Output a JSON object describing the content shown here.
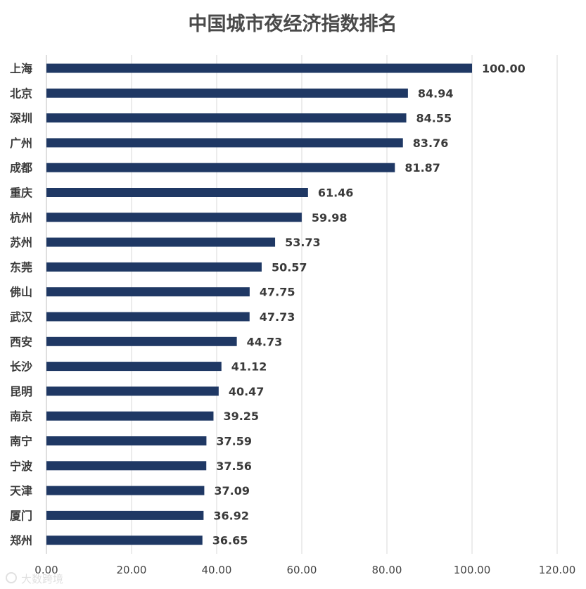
{
  "chart_data": {
    "type": "bar",
    "orientation": "horizontal",
    "title": "中国城市夜经济指数排名",
    "categories": [
      "上海",
      "北京",
      "深圳",
      "广州",
      "成都",
      "重庆",
      "杭州",
      "苏州",
      "东莞",
      "佛山",
      "武汉",
      "西安",
      "长沙",
      "昆明",
      "南京",
      "南宁",
      "宁波",
      "天津",
      "厦门",
      "郑州"
    ],
    "values": [
      100.0,
      84.94,
      84.55,
      83.76,
      81.87,
      61.46,
      59.98,
      53.73,
      50.57,
      47.75,
      47.73,
      44.73,
      41.12,
      40.47,
      39.25,
      37.59,
      37.56,
      37.09,
      36.92,
      36.65
    ],
    "value_labels": [
      "100.00",
      "84.94",
      "84.55",
      "83.76",
      "81.87",
      "61.46",
      "59.98",
      "53.73",
      "50.57",
      "47.75",
      "47.73",
      "44.73",
      "41.12",
      "40.47",
      "39.25",
      "37.59",
      "37.56",
      "37.09",
      "36.92",
      "36.65"
    ],
    "xlim": [
      0,
      120
    ],
    "x_ticks": [
      "0.00",
      "20.00",
      "40.00",
      "60.00",
      "80.00",
      "100.00",
      "120.00"
    ],
    "grid": true,
    "legend": "none",
    "bar_color": "#1f3864"
  },
  "watermark": {
    "text": "大数跨境",
    "icon": "watermark-logo-icon"
  }
}
